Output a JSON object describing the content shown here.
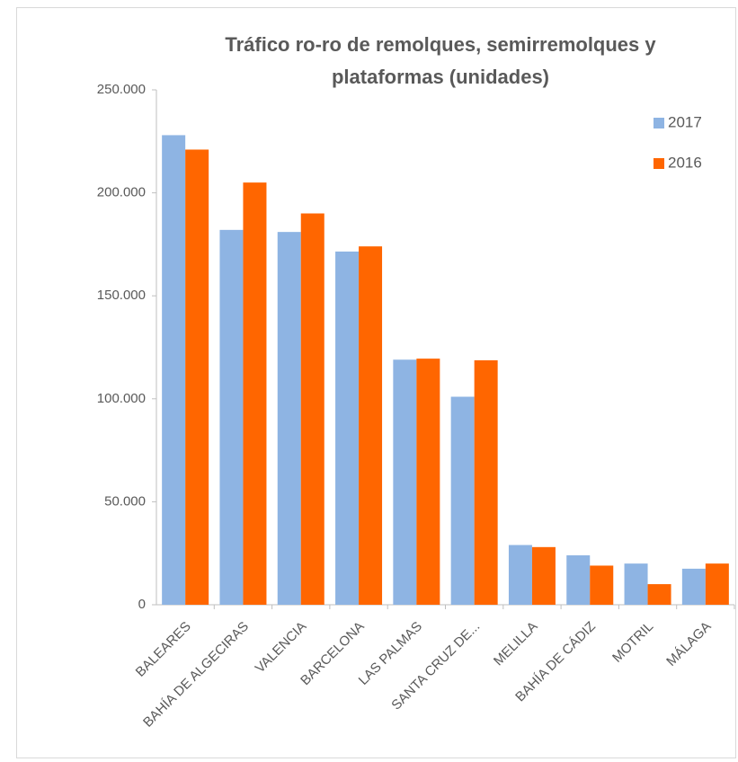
{
  "chart_data": {
    "type": "bar",
    "title": "Tráfico ro-ro de remolques, semirremolques y plataformas (unidades)",
    "categories": [
      "BALEARES",
      "BAHÍA DE ALGECIRAS",
      "VALENCIA",
      "BARCELONA",
      "LAS PALMAS",
      "SANTA CRUZ DE...",
      "MELILLA",
      "BAHÍA DE CÁDIZ",
      "MOTRIL",
      "MÁLAGA"
    ],
    "series": [
      {
        "name": "2017",
        "color": "#8eb4e3",
        "values": [
          228000,
          182000,
          181000,
          171500,
          119000,
          101000,
          29000,
          24000,
          20000,
          17500
        ]
      },
      {
        "name": "2016",
        "color": "#ff6600",
        "values": [
          221000,
          205000,
          190000,
          174000,
          119500,
          118700,
          28000,
          19000,
          10000,
          20000
        ]
      }
    ],
    "ylim": [
      0,
      250000
    ],
    "yticks": [
      {
        "value": 0,
        "label": "0"
      },
      {
        "value": 50000,
        "label": "50.000"
      },
      {
        "value": 100000,
        "label": "100.000"
      },
      {
        "value": 150000,
        "label": "150.000"
      },
      {
        "value": 200000,
        "label": "200.000"
      },
      {
        "value": 250000,
        "label": "250.000"
      }
    ],
    "grid": false,
    "legend": "top-right"
  }
}
